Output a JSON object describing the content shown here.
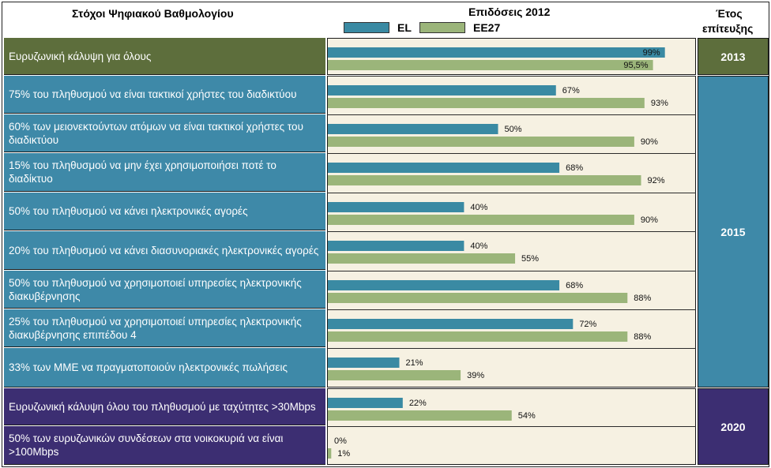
{
  "header": {
    "col1": "Στόχοι Ψηφιακού Βαθμολογίου",
    "col2": "Επιδόσεις 2012",
    "col3_line1": "Έτος",
    "col3_line2": "επίτευξης"
  },
  "colors": {
    "el": "#3a8aa3",
    "ee27": "#9bb57a",
    "group_2013": "#5d6e3c",
    "group_2015": "#3e89a8",
    "group_2020": "#3c2e72",
    "panel_bg": "#f6f1e2"
  },
  "groups": [
    {
      "year": "2013",
      "color_key": "group_2013"
    },
    {
      "year": "2015",
      "color_key": "group_2015"
    },
    {
      "year": "2020",
      "color_key": "group_2020"
    }
  ],
  "chart_data": {
    "type": "bar",
    "orientation": "horizontal",
    "xlim": [
      0,
      100
    ],
    "grid": false,
    "legend_position": "top",
    "series": [
      {
        "name": "EL",
        "values": [
          99,
          67,
          50,
          68,
          40,
          40,
          68,
          72,
          21,
          22,
          0
        ],
        "labels": [
          "99%",
          "67%",
          "50%",
          "68%",
          "40%",
          "40%",
          "68%",
          "72%",
          "21%",
          "22%",
          "0%"
        ]
      },
      {
        "name": "EE27",
        "values": [
          95.5,
          93,
          90,
          92,
          90,
          55,
          88,
          88,
          39,
          54,
          1
        ],
        "labels": [
          "95,5%",
          "93%",
          "90%",
          "92%",
          "90%",
          "55%",
          "88%",
          "88%",
          "39%",
          "54%",
          "1%"
        ]
      }
    ],
    "categories": [
      "Ευρυζωνική κάλυψη για όλους",
      "75% του πληθυσμού να είναι τακτικοί χρήστες του διαδικτύου",
      "60% των μειονεκτούντων ατόμων να είναι τακτικοί χρήστες του διαδικτύου",
      "15% του πληθυσμού να μην έχει χρησιμοποιήσει ποτέ το διαδίκτυο",
      "50% του πληθυσμού να κάνει ηλεκτρονικές αγορές",
      "20% του πληθυσμού να κάνει διασυνοριακές ηλεκτρονικές αγορές",
      "50% του πληθυσμού να χρησιμοποιεί υπηρεσίες ηλεκτρονικής διακυβέρνησης",
      "25% του πληθυσμού να χρησιμοποιεί υπηρεσίες ηλεκτρονικής διακυβέρνησης επιπέδου 4",
      "33% των ΜΜΕ να πραγματοποιούν ηλεκτρονικές πωλήσεις",
      "Ευρυζωνική κάλυψη όλου του πληθυσμού με ταχύτητες >30Mbps",
      "50% των ευρυζωνικών συνδέσεων στα νοικοκυριά να είναι >100Mbps"
    ],
    "category_group": [
      0,
      1,
      1,
      1,
      1,
      1,
      1,
      1,
      1,
      2,
      2
    ]
  }
}
